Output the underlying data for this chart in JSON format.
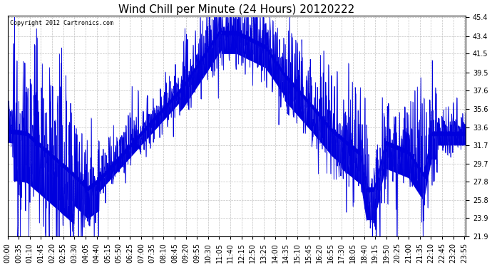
{
  "title": "Wind Chill per Minute (24 Hours) 20120222",
  "copyright_text": "Copyright 2012 Cartronics.com",
  "yticks": [
    21.9,
    23.9,
    25.8,
    27.8,
    29.7,
    31.7,
    33.6,
    35.6,
    37.6,
    39.5,
    41.5,
    43.4,
    45.4
  ],
  "ymin": 21.9,
  "ymax": 45.4,
  "line_color": "#0000dd",
  "bg_color": "#ffffff",
  "grid_color": "#bbbbbb",
  "title_fontsize": 11,
  "tick_fontsize": 7,
  "total_minutes": 1440,
  "xtick_step": 35
}
